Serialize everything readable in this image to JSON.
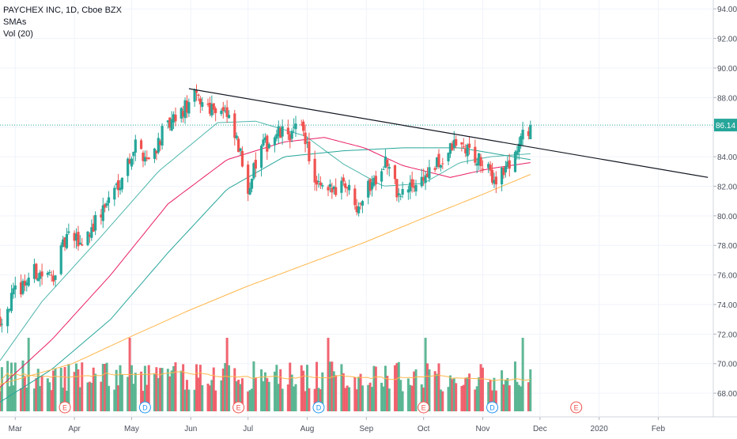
{
  "header": {
    "symbol_line": "PAYCHEX INC, 1D, Cboe BZX",
    "indicator_1": "SMAs",
    "indicator_2": "Vol (20)"
  },
  "chart_data": {
    "type": "candlestick",
    "symbol": "PAYCHEX INC",
    "interval": "1D",
    "exchange": "Cboe BZX",
    "y_axis_ticks": [
      "94.00",
      "92.00",
      "90.00",
      "88.00",
      "86.00",
      "84.00",
      "82.00",
      "80.00",
      "78.00",
      "76.00",
      "74.00",
      "72.00",
      "70.00",
      "68.00"
    ],
    "ylim": [
      66.4,
      94.6
    ],
    "x_axis_labels": [
      "Mar",
      "Apr",
      "May",
      "Jun",
      "Jul",
      "Aug",
      "Sep",
      "Oct",
      "Nov",
      "Dec",
      "2020",
      "Feb"
    ],
    "last_price_label": "86.14",
    "last_price": 86.14,
    "date_range": [
      "2019-02-21",
      "2020-02-29"
    ],
    "trendline": [
      {
        "date": "2019-05-31",
        "price": 88.6
      },
      {
        "date": "2020-02-27",
        "price": 82.6
      }
    ],
    "price_waypoints": [
      [
        "2019-02-21",
        73.0
      ],
      [
        "2019-03-01",
        74.8
      ],
      [
        "2019-03-11",
        76.2
      ],
      [
        "2019-03-20",
        75.8
      ],
      [
        "2019-03-28",
        78.5
      ],
      [
        "2019-04-05",
        78.2
      ],
      [
        "2019-04-15",
        80.2
      ],
      [
        "2019-04-25",
        82.5
      ],
      [
        "2019-05-03",
        84.8
      ],
      [
        "2019-05-10",
        83.8
      ],
      [
        "2019-05-17",
        85.5
      ],
      [
        "2019-05-24",
        86.5
      ],
      [
        "2019-06-03",
        88.0
      ],
      [
        "2019-06-10",
        87.5
      ],
      [
        "2019-06-18",
        87.2
      ],
      [
        "2019-06-25",
        85.0
      ],
      [
        "2019-07-01",
        82.0
      ],
      [
        "2019-07-08",
        84.5
      ],
      [
        "2019-07-16",
        85.5
      ],
      [
        "2019-07-24",
        85.6
      ],
      [
        "2019-07-30",
        86.0
      ],
      [
        "2019-08-05",
        82.0
      ],
      [
        "2019-08-12",
        81.5
      ],
      [
        "2019-08-20",
        82.5
      ],
      [
        "2019-08-27",
        80.8
      ],
      [
        "2019-09-05",
        82.5
      ],
      [
        "2019-09-11",
        83.8
      ],
      [
        "2019-09-18",
        81.3
      ],
      [
        "2019-09-25",
        82.0
      ],
      [
        "2019-10-03",
        82.8
      ],
      [
        "2019-10-10",
        83.6
      ],
      [
        "2019-10-17",
        84.8
      ],
      [
        "2019-10-24",
        84.5
      ],
      [
        "2019-10-31",
        83.5
      ],
      [
        "2019-11-07",
        82.5
      ],
      [
        "2019-11-14",
        83.3
      ],
      [
        "2019-11-19",
        84.6
      ],
      [
        "2019-11-22",
        85.3
      ],
      [
        "2019-11-26",
        86.14
      ]
    ],
    "sma_series": [
      {
        "color": "#4db6ac",
        "waypoints": [
          [
            "2019-02-21",
            70.2
          ],
          [
            "2019-03-15",
            74.2
          ],
          [
            "2019-04-15",
            78.6
          ],
          [
            "2019-05-15",
            83.0
          ],
          [
            "2019-06-15",
            86.3
          ],
          [
            "2019-07-05",
            86.4
          ],
          [
            "2019-07-31",
            85.4
          ],
          [
            "2019-08-20",
            83.5
          ],
          [
            "2019-09-10",
            82.0
          ],
          [
            "2019-10-01",
            82.2
          ],
          [
            "2019-10-20",
            83.6
          ],
          [
            "2019-11-05",
            84.0
          ],
          [
            "2019-11-26",
            84.2
          ]
        ]
      },
      {
        "color": "#26a69a",
        "waypoints": [
          [
            "2019-02-21",
            67.4
          ],
          [
            "2019-03-20",
            69.6
          ],
          [
            "2019-04-20",
            73.0
          ],
          [
            "2019-05-20",
            77.5
          ],
          [
            "2019-06-20",
            81.8
          ],
          [
            "2019-07-20",
            84.0
          ],
          [
            "2019-08-20",
            84.4
          ],
          [
            "2019-09-20",
            84.6
          ],
          [
            "2019-10-20",
            84.6
          ],
          [
            "2019-11-26",
            83.8
          ]
        ]
      },
      {
        "color": "#e91e63",
        "waypoints": [
          [
            "2019-02-21",
            68.4
          ],
          [
            "2019-03-20",
            71.6
          ],
          [
            "2019-04-20",
            76.0
          ],
          [
            "2019-05-20",
            80.8
          ],
          [
            "2019-06-20",
            83.8
          ],
          [
            "2019-07-20",
            85.0
          ],
          [
            "2019-08-10",
            85.3
          ],
          [
            "2019-08-31",
            84.6
          ],
          [
            "2019-09-20",
            83.4
          ],
          [
            "2019-10-15",
            82.6
          ],
          [
            "2019-11-05",
            83.2
          ],
          [
            "2019-11-26",
            83.6
          ]
        ]
      },
      {
        "color": "#ffb74d",
        "waypoints": [
          [
            "2019-02-21",
            68.6
          ],
          [
            "2019-03-31",
            70.0
          ],
          [
            "2019-04-30",
            71.8
          ],
          [
            "2019-05-31",
            73.6
          ],
          [
            "2019-06-30",
            75.2
          ],
          [
            "2019-07-31",
            76.7
          ],
          [
            "2019-08-31",
            78.2
          ],
          [
            "2019-09-30",
            79.8
          ],
          [
            "2019-10-31",
            81.4
          ],
          [
            "2019-11-26",
            82.8
          ]
        ]
      }
    ],
    "volume_ma_color": "#ffb74d",
    "events": [
      {
        "letter": "E",
        "date": "2019-03-27"
      },
      {
        "letter": "D",
        "date": "2019-05-08"
      },
      {
        "letter": "E",
        "date": "2019-06-26"
      },
      {
        "letter": "D",
        "date": "2019-08-07"
      },
      {
        "letter": "E",
        "date": "2019-10-01"
      },
      {
        "letter": "D",
        "date": "2019-11-06"
      },
      {
        "letter": "E",
        "date": "2019-12-20"
      }
    ],
    "colors": {
      "up": "#26a69a",
      "down": "#ef5350",
      "up_volume": "#4caf8a",
      "down_volume": "#ef5360",
      "trendline": "#131722",
      "last_price_bg": "#26a69a"
    },
    "grid": true
  }
}
